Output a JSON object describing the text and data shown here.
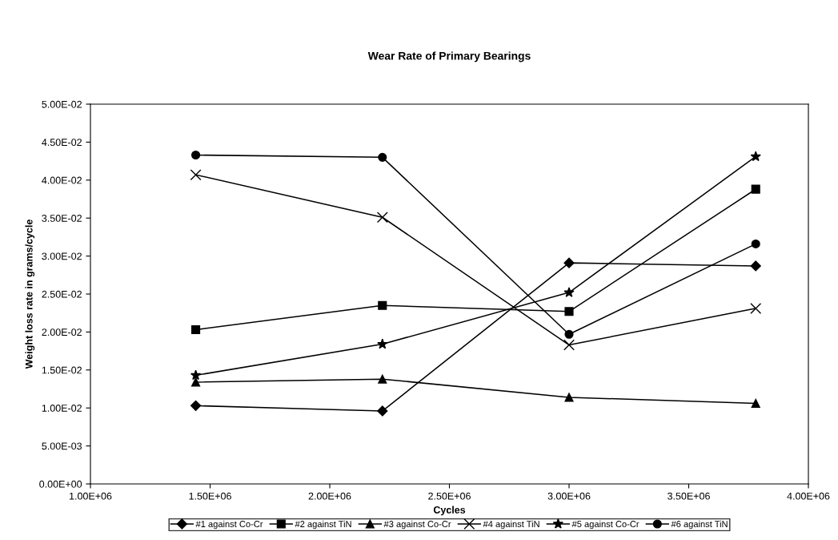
{
  "chart_data": {
    "type": "line",
    "title": "Wear Rate of Primary Bearings",
    "xlabel": "Cycles",
    "ylabel": "Weight loss rate in grams/cycle",
    "x": [
      1440000,
      2220000,
      3000000,
      3780000
    ],
    "series": [
      {
        "name": "#1 against Co-Cr",
        "color": "#000000",
        "marker": "diamond",
        "values": [
          0.0103,
          0.0096,
          0.0291,
          0.0287
        ]
      },
      {
        "name": "#2 against TiN",
        "color": "#000000",
        "marker": "square",
        "values": [
          0.0203,
          0.0235,
          0.0227,
          0.0388
        ]
      },
      {
        "name": "#3 against Co-Cr",
        "color": "#000000",
        "marker": "triangle",
        "values": [
          0.0134,
          0.0138,
          0.0114,
          0.0106
        ]
      },
      {
        "name": "#4 against TiN",
        "color": "#000000",
        "marker": "cross",
        "values": [
          0.0407,
          0.0351,
          0.0183,
          0.0231
        ]
      },
      {
        "name": "#5 against Co-Cr",
        "color": "#000000",
        "marker": "star",
        "values": [
          0.0143,
          0.0184,
          0.0252,
          0.0431
        ]
      },
      {
        "name": "#6 against TiN",
        "color": "#000000",
        "marker": "circle",
        "values": [
          0.0433,
          0.043,
          0.0197,
          0.0316
        ]
      }
    ],
    "xlim": [
      1000000,
      4000000
    ],
    "xticks": [
      {
        "value": 1000000,
        "label": "1.00E+06"
      },
      {
        "value": 1500000,
        "label": "1.50E+06"
      },
      {
        "value": 2000000,
        "label": "2.00E+06"
      },
      {
        "value": 2500000,
        "label": "2.50E+06"
      },
      {
        "value": 3000000,
        "label": "3.00E+06"
      },
      {
        "value": 3500000,
        "label": "3.50E+06"
      },
      {
        "value": 4000000,
        "label": "4.00E+06"
      }
    ],
    "ylim": [
      0,
      0.05
    ],
    "yticks": [
      {
        "value": 0,
        "label": "0.00E+00"
      },
      {
        "value": 0.005,
        "label": "5.00E-03"
      },
      {
        "value": 0.01,
        "label": "1.00E-02"
      },
      {
        "value": 0.015,
        "label": "1.50E-02"
      },
      {
        "value": 0.02,
        "label": "2.00E-02"
      },
      {
        "value": 0.025,
        "label": "2.50E-02"
      },
      {
        "value": 0.03,
        "label": "3.00E-02"
      },
      {
        "value": 0.035,
        "label": "3.50E-02"
      },
      {
        "value": 0.04,
        "label": "4.00E-02"
      },
      {
        "value": 0.045,
        "label": "4.50E-02"
      },
      {
        "value": 0.05,
        "label": "5.00E-02"
      }
    ],
    "grid": false,
    "legend": "bottom",
    "line_style": "solid"
  }
}
